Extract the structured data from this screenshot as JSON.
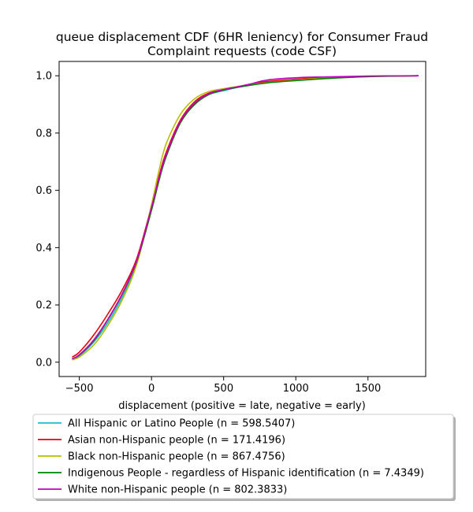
{
  "chart_data": {
    "type": "line",
    "title_lines": [
      "queue displacement CDF (6HR leniency) for Consumer Fraud",
      "Complaint  requests (code CSF)"
    ],
    "xlabel": "displacement (positive = late, negative = early)",
    "ylabel": "",
    "xlim": [
      -640,
      1900
    ],
    "ylim": [
      -0.05,
      1.05
    ],
    "xticks": [
      -500,
      0,
      500,
      1000,
      1500
    ],
    "yticks": [
      0.0,
      0.2,
      0.4,
      0.6,
      0.8,
      1.0
    ],
    "xtick_labels": [
      "−500",
      "0",
      "500",
      "1000",
      "1500"
    ],
    "ytick_labels": [
      "0.0",
      "0.2",
      "0.4",
      "0.6",
      "0.8",
      "1.0"
    ],
    "grid": false,
    "legend_placement": "below",
    "series": [
      {
        "name": "All Hispanic or Latino People (n = 598.5407)",
        "color": "#17becf",
        "x": [
          -550,
          -500,
          -400,
          -300,
          -200,
          -100,
          0,
          50,
          100,
          200,
          300,
          400,
          500,
          600,
          700,
          800,
          1000,
          1200,
          1500,
          1850
        ],
        "y": [
          0.01,
          0.022,
          0.07,
          0.14,
          0.23,
          0.35,
          0.54,
          0.64,
          0.725,
          0.84,
          0.905,
          0.935,
          0.948,
          0.96,
          0.97,
          0.978,
          0.987,
          0.993,
          0.998,
          1.0
        ]
      },
      {
        "name": "Asian non-Hispanic people (n = 171.4196)",
        "color": "#e8000b",
        "x": [
          -550,
          -500,
          -400,
          -300,
          -200,
          -100,
          0,
          50,
          100,
          200,
          300,
          400,
          500,
          600,
          700,
          800,
          1000,
          1200,
          1500,
          1850
        ],
        "y": [
          0.018,
          0.035,
          0.095,
          0.17,
          0.255,
          0.365,
          0.545,
          0.645,
          0.73,
          0.845,
          0.91,
          0.94,
          0.952,
          0.962,
          0.972,
          0.98,
          0.988,
          0.994,
          0.998,
          1.0
        ]
      },
      {
        "name": "Black non-Hispanic people (n = 867.4756)",
        "color": "#bcbd00",
        "x": [
          -550,
          -500,
          -400,
          -300,
          -200,
          -100,
          0,
          50,
          100,
          200,
          300,
          400,
          500,
          600,
          700,
          800,
          1000,
          1200,
          1500,
          1850
        ],
        "y": [
          0.008,
          0.018,
          0.06,
          0.13,
          0.22,
          0.345,
          0.55,
          0.665,
          0.76,
          0.865,
          0.92,
          0.945,
          0.955,
          0.963,
          0.97,
          0.976,
          0.985,
          0.992,
          0.997,
          1.0
        ]
      },
      {
        "name": "Indigenous People - regardless of Hispanic identification (n = 7.4349)",
        "color": "#008000",
        "x": [
          -550,
          -500,
          -400,
          -300,
          -200,
          -100,
          0,
          50,
          100,
          200,
          300,
          400,
          500,
          600,
          700,
          800,
          1000,
          1200,
          1500,
          1850
        ],
        "y": [
          0.012,
          0.025,
          0.075,
          0.15,
          0.24,
          0.355,
          0.53,
          0.63,
          0.715,
          0.835,
          0.9,
          0.935,
          0.95,
          0.96,
          0.968,
          0.975,
          0.983,
          0.99,
          0.997,
          1.0
        ]
      },
      {
        "name": "White non-Hispanic people (n = 802.3833)",
        "color": "#bf00bf",
        "x": [
          -550,
          -500,
          -400,
          -300,
          -200,
          -100,
          0,
          50,
          100,
          200,
          300,
          400,
          500,
          600,
          700,
          800,
          1000,
          1200,
          1500,
          1850
        ],
        "y": [
          0.012,
          0.026,
          0.078,
          0.152,
          0.242,
          0.358,
          0.54,
          0.638,
          0.722,
          0.84,
          0.905,
          0.938,
          0.952,
          0.962,
          0.973,
          0.985,
          0.993,
          0.996,
          0.999,
          1.0
        ]
      }
    ]
  }
}
